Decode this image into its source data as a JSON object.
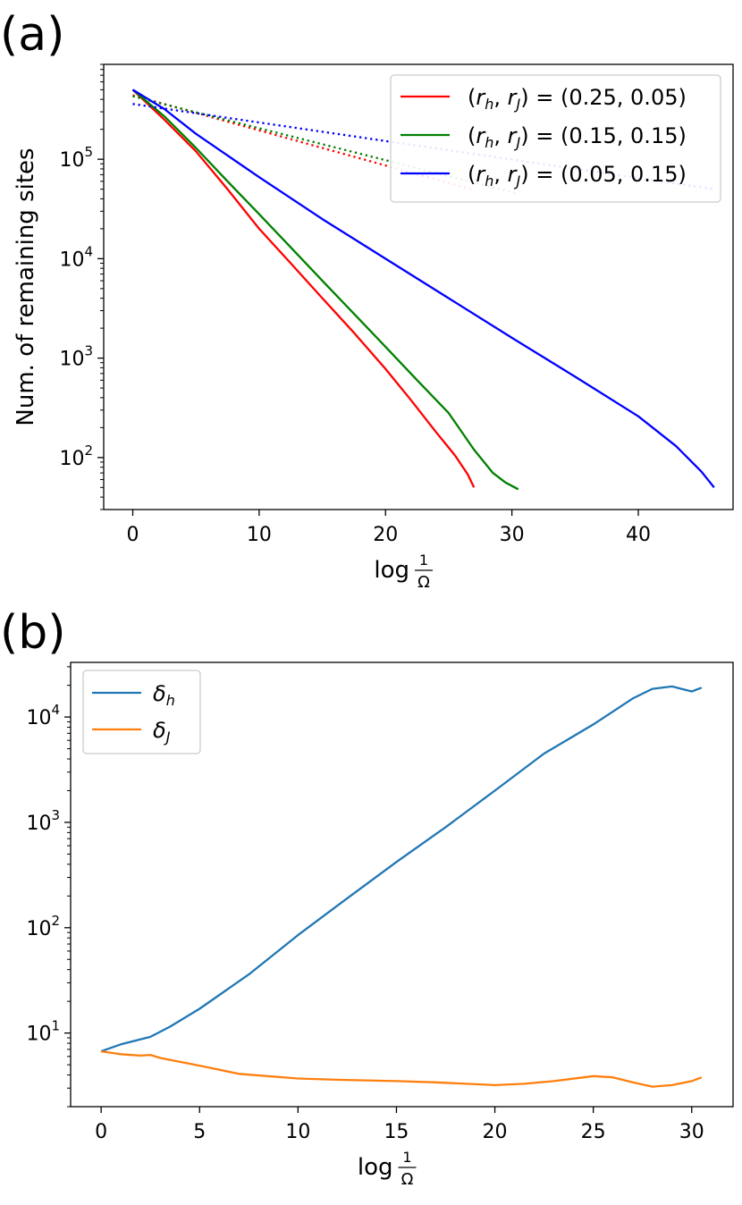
{
  "chart_data": [
    {
      "panel_label": "(a)",
      "type": "line",
      "ylabel": "Num. of remaining sites",
      "xlabel": "log",
      "xlabel_frac_num": "1",
      "xlabel_frac_den": "Ω",
      "yscale": "log",
      "xlim": [
        -2.3,
        47.5
      ],
      "ylim": [
        30,
        900000
      ],
      "xticks": [
        0,
        10,
        20,
        30,
        40
      ],
      "xtick_labels": [
        "0",
        "10",
        "20",
        "30",
        "40"
      ],
      "yticks": [
        100,
        1000,
        10000,
        100000
      ],
      "ytick_labels": [
        [
          "10",
          "2"
        ],
        [
          "10",
          "3"
        ],
        [
          "10",
          "4"
        ],
        [
          "10",
          "5"
        ]
      ],
      "legend_position": "top-right",
      "series": [
        {
          "label": {
            "pre": "(",
            "r1": "r",
            "s1": "h",
            "mid": ", ",
            "r2": "r",
            "s2": "J",
            "post": ") = (0.25, 0.05)"
          },
          "color": "#ff0000",
          "style": "solid",
          "x": [
            0,
            2.5,
            5,
            7.5,
            10,
            12.5,
            15,
            17.5,
            20,
            22,
            24,
            25.5,
            26.5,
            27
          ],
          "y": [
            500000,
            250000,
            120000,
            50000,
            20000,
            9000,
            4000,
            1800,
            780,
            380,
            180,
            105,
            68,
            50
          ]
        },
        {
          "label": {
            "pre": "",
            "r1": "",
            "s1": "",
            "mid": "",
            "r2": "",
            "s2": "",
            "post": ""
          },
          "color": "#ff0000",
          "style": "dotted",
          "x": [
            0,
            27
          ],
          "y": [
            440000,
            49000
          ]
        },
        {
          "label": {
            "pre": "(",
            "r1": "r",
            "s1": "h",
            "mid": ", ",
            "r2": "r",
            "s2": "J",
            "post": ") = (0.15, 0.15)"
          },
          "color": "#008000",
          "style": "solid",
          "x": [
            0,
            2.5,
            5,
            7.5,
            10,
            12.5,
            15,
            17.5,
            20,
            22.5,
            25,
            27,
            28.5,
            29.5,
            30.5
          ],
          "y": [
            500000,
            270000,
            130000,
            60000,
            28000,
            13000,
            6000,
            2800,
            1300,
            600,
            280,
            120,
            70,
            56,
            48
          ]
        },
        {
          "label": {
            "pre": "",
            "r1": "",
            "s1": "",
            "mid": "",
            "r2": "",
            "s2": "",
            "post": ""
          },
          "color": "#008000",
          "style": "dotted",
          "x": [
            0,
            30.5
          ],
          "y": [
            430000,
            45000
          ]
        },
        {
          "label": {
            "pre": "(",
            "r1": "r",
            "s1": "h",
            "mid": ", ",
            "r2": "r",
            "s2": "J",
            "post": ") = (0.05, 0.15)"
          },
          "color": "#0000ff",
          "style": "solid",
          "x": [
            0,
            2.5,
            5,
            10,
            15,
            20,
            25,
            30,
            35,
            40,
            43,
            45,
            46
          ],
          "y": [
            500000,
            320000,
            180000,
            66000,
            25000,
            10000,
            4000,
            1600,
            650,
            260,
            130,
            72,
            50
          ]
        },
        {
          "label": {
            "pre": "",
            "r1": "",
            "s1": "",
            "mid": "",
            "r2": "",
            "s2": "",
            "post": ""
          },
          "color": "#0000ff",
          "style": "dotted",
          "x": [
            0,
            46
          ],
          "y": [
            360000,
            50000
          ]
        }
      ]
    },
    {
      "panel_label": "(b)",
      "type": "line",
      "ylabel": "",
      "xlabel": "log",
      "xlabel_frac_num": "1",
      "xlabel_frac_den": "Ω",
      "yscale": "log",
      "xlim": [
        -1.55,
        32.1
      ],
      "ylim": [
        2.0,
        33000
      ],
      "xticks": [
        0,
        5,
        10,
        15,
        20,
        25,
        30
      ],
      "xtick_labels": [
        "0",
        "5",
        "10",
        "15",
        "20",
        "25",
        "30"
      ],
      "yticks": [
        10,
        100,
        1000,
        10000
      ],
      "ytick_labels": [
        [
          "10",
          "1"
        ],
        [
          "10",
          "2"
        ],
        [
          "10",
          "3"
        ],
        [
          "10",
          "4"
        ]
      ],
      "legend_position": "top-left",
      "series": [
        {
          "label": {
            "sym": "δ",
            "sub": "h"
          },
          "color": "#1f77b4",
          "style": "solid",
          "x": [
            0,
            1,
            2.5,
            3.5,
            5,
            7.5,
            10,
            12.5,
            15,
            17.5,
            20,
            22.5,
            25,
            27,
            28,
            29,
            30,
            30.5
          ],
          "y": [
            6.7,
            7.8,
            9.2,
            11.5,
            17,
            36,
            85,
            190,
            420,
            900,
            2000,
            4500,
            8500,
            15000,
            18500,
            19500,
            17500,
            19000
          ]
        },
        {
          "label": {
            "sym": "δ",
            "sub": "J"
          },
          "color": "#ff7f0e",
          "style": "solid",
          "x": [
            0,
            1,
            2,
            2.5,
            3,
            5,
            7,
            10,
            12,
            15,
            17,
            20,
            21.5,
            23,
            25,
            26,
            27,
            28,
            29,
            30,
            30.5
          ],
          "y": [
            6.7,
            6.3,
            6.1,
            6.2,
            5.8,
            4.9,
            4.1,
            3.7,
            3.6,
            3.5,
            3.4,
            3.2,
            3.3,
            3.5,
            3.9,
            3.8,
            3.4,
            3.1,
            3.2,
            3.5,
            3.8
          ]
        }
      ]
    }
  ]
}
